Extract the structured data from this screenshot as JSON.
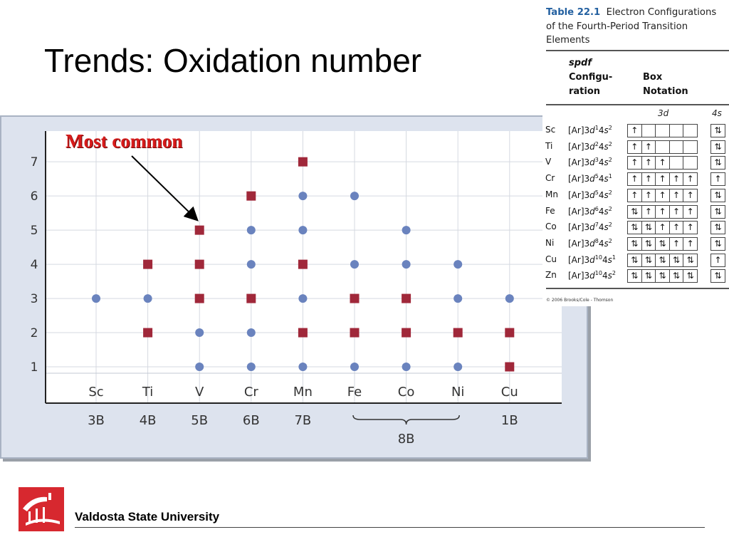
{
  "slide": {
    "title": "Trends: Oxidation number",
    "footer": "Valdosta State University"
  },
  "annotation": {
    "text": "Most common"
  },
  "chart_data": {
    "type": "scatter",
    "categories": [
      "Sc",
      "Ti",
      "V",
      "Cr",
      "Mn",
      "Fe",
      "Co",
      "Ni",
      "Cu"
    ],
    "groups": [
      "3B",
      "4B",
      "5B",
      "6B",
      "7B",
      "8B",
      "1B"
    ],
    "group_spans": [
      {
        "label": "3B",
        "from": "Sc",
        "to": "Sc"
      },
      {
        "label": "4B",
        "from": "Ti",
        "to": "Ti"
      },
      {
        "label": "5B",
        "from": "V",
        "to": "V"
      },
      {
        "label": "6B",
        "from": "Cr",
        "to": "Cr"
      },
      {
        "label": "7B",
        "from": "Mn",
        "to": "Mn"
      },
      {
        "label": "8B",
        "from": "Fe",
        "to": "Ni"
      },
      {
        "label": "1B",
        "from": "Cu",
        "to": "Cu"
      }
    ],
    "yticks": [
      1,
      2,
      3,
      4,
      5,
      6,
      7
    ],
    "ylim": [
      0,
      7.9
    ],
    "grid": true,
    "marker_legend": {
      "most_common": "square",
      "other": "circle"
    },
    "colors": {
      "square": "#a0283a",
      "circle": "#6a83be",
      "grid": "#ffffff",
      "plot_bg": "#ffffff",
      "panel_bg": "#dde3ee"
    },
    "points": [
      {
        "x": "Sc",
        "y": 3,
        "common": false
      },
      {
        "x": "Ti",
        "y": 2,
        "common": true
      },
      {
        "x": "Ti",
        "y": 3,
        "common": false
      },
      {
        "x": "Ti",
        "y": 4,
        "common": true
      },
      {
        "x": "V",
        "y": 1,
        "common": false
      },
      {
        "x": "V",
        "y": 2,
        "common": false
      },
      {
        "x": "V",
        "y": 3,
        "common": true
      },
      {
        "x": "V",
        "y": 4,
        "common": true
      },
      {
        "x": "V",
        "y": 5,
        "common": true
      },
      {
        "x": "Cr",
        "y": 1,
        "common": false
      },
      {
        "x": "Cr",
        "y": 2,
        "common": false
      },
      {
        "x": "Cr",
        "y": 3,
        "common": true
      },
      {
        "x": "Cr",
        "y": 4,
        "common": false
      },
      {
        "x": "Cr",
        "y": 5,
        "common": false
      },
      {
        "x": "Cr",
        "y": 6,
        "common": true
      },
      {
        "x": "Mn",
        "y": 1,
        "common": false
      },
      {
        "x": "Mn",
        "y": 2,
        "common": true
      },
      {
        "x": "Mn",
        "y": 3,
        "common": false
      },
      {
        "x": "Mn",
        "y": 4,
        "common": true
      },
      {
        "x": "Mn",
        "y": 5,
        "common": false
      },
      {
        "x": "Mn",
        "y": 6,
        "common": false
      },
      {
        "x": "Mn",
        "y": 7,
        "common": true
      },
      {
        "x": "Fe",
        "y": 1,
        "common": false
      },
      {
        "x": "Fe",
        "y": 2,
        "common": true
      },
      {
        "x": "Fe",
        "y": 3,
        "common": true
      },
      {
        "x": "Fe",
        "y": 4,
        "common": false
      },
      {
        "x": "Fe",
        "y": 6,
        "common": false
      },
      {
        "x": "Co",
        "y": 1,
        "common": false
      },
      {
        "x": "Co",
        "y": 2,
        "common": true
      },
      {
        "x": "Co",
        "y": 3,
        "common": true
      },
      {
        "x": "Co",
        "y": 4,
        "common": false
      },
      {
        "x": "Co",
        "y": 5,
        "common": false
      },
      {
        "x": "Ni",
        "y": 1,
        "common": false
      },
      {
        "x": "Ni",
        "y": 2,
        "common": true
      },
      {
        "x": "Ni",
        "y": 3,
        "common": false
      },
      {
        "x": "Ni",
        "y": 4,
        "common": false
      },
      {
        "x": "Cu",
        "y": 1,
        "common": true
      },
      {
        "x": "Cu",
        "y": 2,
        "common": true
      },
      {
        "x": "Cu",
        "y": 3,
        "common": false
      }
    ]
  },
  "table": {
    "number": "Table 22.1",
    "title": "Electron Configurations of the Fourth-Period Transition Elements",
    "col_spdf_line1": "spdf",
    "col_spdf_line2": "Configu-",
    "col_spdf_line3": "ration",
    "col_box_line1": "Box",
    "col_box_line2": "Notation",
    "sub_3d": "3d",
    "sub_4s": "4s",
    "credit": "© 2006 Brooks/Cole - Thomson",
    "rows": [
      {
        "el": "Sc",
        "d": "1",
        "s": "2",
        "boxes": [
          "↑",
          "",
          "",
          "",
          ""
        ],
        "sbox": "⇅"
      },
      {
        "el": "Ti",
        "d": "2",
        "s": "2",
        "boxes": [
          "↑",
          "↑",
          "",
          "",
          ""
        ],
        "sbox": "⇅"
      },
      {
        "el": "V",
        "d": "3",
        "s": "2",
        "boxes": [
          "↑",
          "↑",
          "↑",
          "",
          ""
        ],
        "sbox": "⇅"
      },
      {
        "el": "Cr",
        "d": "5",
        "s": "1",
        "boxes": [
          "↑",
          "↑",
          "↑",
          "↑",
          "↑"
        ],
        "sbox": "↑"
      },
      {
        "el": "Mn",
        "d": "5",
        "s": "2",
        "boxes": [
          "↑",
          "↑",
          "↑",
          "↑",
          "↑"
        ],
        "sbox": "⇅"
      },
      {
        "el": "Fe",
        "d": "6",
        "s": "2",
        "boxes": [
          "⇅",
          "↑",
          "↑",
          "↑",
          "↑"
        ],
        "sbox": "⇅"
      },
      {
        "el": "Co",
        "d": "7",
        "s": "2",
        "boxes": [
          "⇅",
          "⇅",
          "↑",
          "↑",
          "↑"
        ],
        "sbox": "⇅"
      },
      {
        "el": "Ni",
        "d": "8",
        "s": "2",
        "boxes": [
          "⇅",
          "⇅",
          "⇅",
          "↑",
          "↑"
        ],
        "sbox": "⇅"
      },
      {
        "el": "Cu",
        "d": "10",
        "s": "1",
        "boxes": [
          "⇅",
          "⇅",
          "⇅",
          "⇅",
          "⇅"
        ],
        "sbox": "↑"
      },
      {
        "el": "Zn",
        "d": "10",
        "s": "2",
        "boxes": [
          "⇅",
          "⇅",
          "⇅",
          "⇅",
          "⇅"
        ],
        "sbox": "⇅"
      }
    ]
  }
}
